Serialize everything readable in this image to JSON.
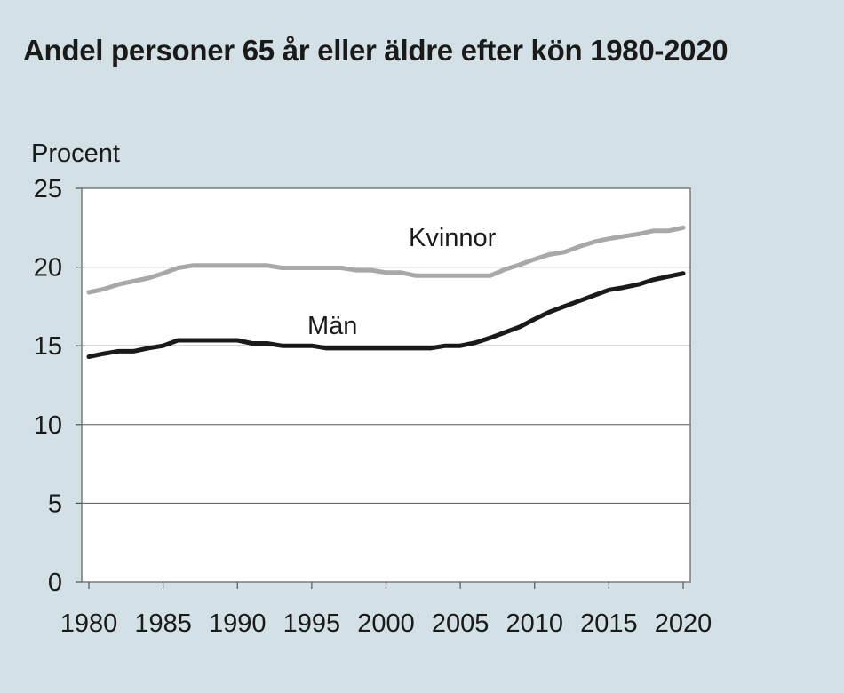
{
  "chart_data": {
    "type": "line",
    "title": "Andel personer 65 år eller äldre efter kön 1980-2020",
    "ylabel": "Procent",
    "xlabel": "",
    "xlim": [
      1980,
      2020
    ],
    "ylim": [
      0,
      25
    ],
    "xticks": [
      1980,
      1985,
      1990,
      1995,
      2000,
      2005,
      2010,
      2015,
      2020
    ],
    "yticks": [
      0,
      5,
      10,
      15,
      20,
      25
    ],
    "grid": true,
    "x": [
      1980,
      1981,
      1982,
      1983,
      1984,
      1985,
      1986,
      1987,
      1988,
      1989,
      1990,
      1991,
      1992,
      1993,
      1994,
      1995,
      1996,
      1997,
      1998,
      1999,
      2000,
      2001,
      2002,
      2003,
      2004,
      2005,
      2006,
      2007,
      2008,
      2009,
      2010,
      2011,
      2012,
      2013,
      2014,
      2015,
      2016,
      2017,
      2018,
      2019,
      2020
    ],
    "series": [
      {
        "name": "Kvinnor",
        "color": "#a8a8a8",
        "values": [
          18.4,
          18.6,
          18.9,
          19.1,
          19.3,
          19.6,
          19.95,
          20.1,
          20.1,
          20.1,
          20.1,
          20.1,
          20.1,
          19.95,
          19.95,
          19.95,
          19.95,
          19.95,
          19.8,
          19.8,
          19.65,
          19.65,
          19.45,
          19.45,
          19.45,
          19.45,
          19.45,
          19.45,
          19.85,
          20.15,
          20.5,
          20.8,
          20.95,
          21.3,
          21.6,
          21.8,
          21.95,
          22.1,
          22.3,
          22.3,
          22.5
        ]
      },
      {
        "name": "Män",
        "color": "#1a1a1a",
        "values": [
          14.3,
          14.5,
          14.65,
          14.65,
          14.85,
          15.0,
          15.35,
          15.35,
          15.35,
          15.35,
          15.35,
          15.15,
          15.15,
          15.0,
          15.0,
          15.0,
          14.85,
          14.85,
          14.85,
          14.85,
          14.85,
          14.85,
          14.85,
          14.85,
          15.0,
          15.0,
          15.2,
          15.5,
          15.85,
          16.2,
          16.7,
          17.15,
          17.5,
          17.85,
          18.2,
          18.55,
          18.7,
          18.9,
          19.2,
          19.4,
          19.6
        ]
      }
    ]
  }
}
